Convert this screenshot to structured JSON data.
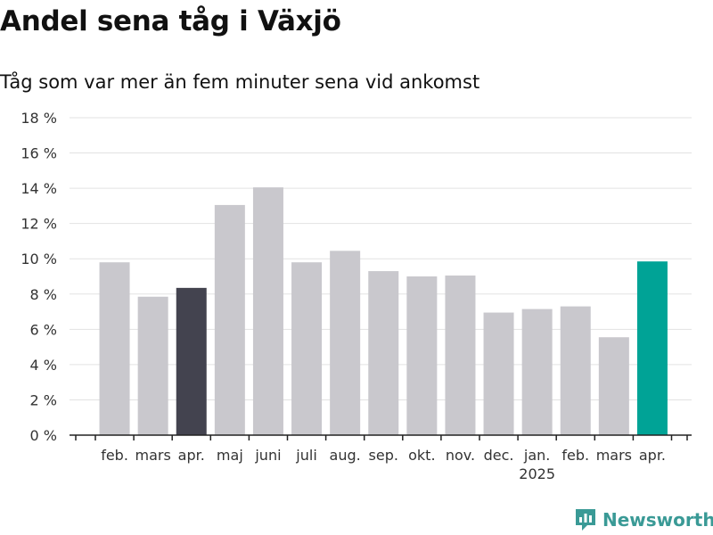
{
  "header": {
    "title": "Andel sena tåg i Växjö",
    "subtitle": "Tåg som var mer än fem minuter sena vid ankomst"
  },
  "chart_data": {
    "type": "bar",
    "categories": [
      "feb.",
      "mars",
      "apr.",
      "maj",
      "juni",
      "juli",
      "aug.",
      "sep.",
      "okt.",
      "nov.",
      "dec.",
      "jan.",
      "feb.",
      "mars",
      "apr."
    ],
    "year_labels": [
      {
        "category_index": 11,
        "label": "2025"
      }
    ],
    "values": [
      9.8,
      7.85,
      8.35,
      13.05,
      14.05,
      9.8,
      10.45,
      9.3,
      9.0,
      9.05,
      6.95,
      7.15,
      7.3,
      5.55,
      9.85
    ],
    "colors": [
      "#c9c8cd",
      "#c9c8cd",
      "#43434f",
      "#c9c8cd",
      "#c9c8cd",
      "#c9c8cd",
      "#c9c8cd",
      "#c9c8cd",
      "#c9c8cd",
      "#c9c8cd",
      "#c9c8cd",
      "#c9c8cd",
      "#c9c8cd",
      "#c9c8cd",
      "#00a396"
    ],
    "ylim": [
      0,
      18
    ],
    "yticks": [
      0,
      2,
      4,
      6,
      8,
      10,
      12,
      14,
      16,
      18
    ],
    "ytick_labels": [
      "0 %",
      "2 %",
      "4 %",
      "6 %",
      "8 %",
      "10 %",
      "12 %",
      "14 %",
      "16 %",
      "18 %"
    ],
    "grid": true,
    "xlabel": "",
    "ylabel": ""
  },
  "brand": {
    "name": "Newsworthy",
    "color": "#3a9a96",
    "icon": "bar-chart-logo-icon"
  }
}
